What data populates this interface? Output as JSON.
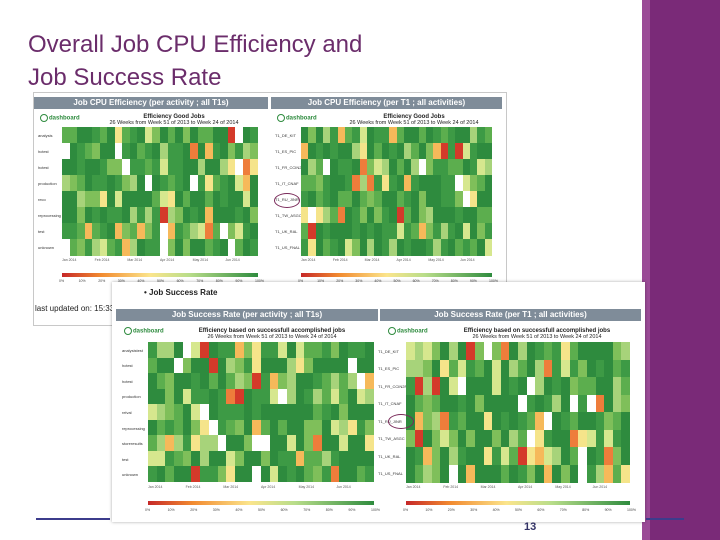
{
  "slide": {
    "title_line1": "Overall Job CPU Efficiency and",
    "title_line2": "Job Success Rate",
    "page_number": "13",
    "colors": {
      "title": "#6b2d6b",
      "sidebar": "#7a2a78",
      "accent_line": "#3c3c8c"
    }
  },
  "logo_text": "dashboard",
  "top_panel": {
    "left_tab": "Job CPU Efficiency (per activity ; all T1s)",
    "right_tab": "Job CPU Efficiency (per T1 ; all activities)",
    "chart_title": "Efficiency Good Jobs",
    "chart_subtitle": "26 Weeks from Week 51 of 2013 to Week 24 of 2014",
    "left_rows": [
      "analysis",
      "hctest",
      "hctest",
      "production",
      "reco",
      "reprocessing",
      "test",
      "unknown"
    ],
    "right_rows": [
      "T1_DE_KIT",
      "T1_ES_PIC",
      "T1_FR_CCIN2P3",
      "T1_IT_CNAF",
      "T1_RU_JINR",
      "T1_TW_ASGC",
      "T1_UK_RAL",
      "T1_US_FNAL"
    ],
    "left_ticks": [
      "Jan 2014",
      "Feb 2014",
      "Mar 2014",
      "Apr 2014",
      "May 2014",
      "Jun 2014"
    ],
    "right_ticks": [
      "Jan 2014",
      "Feb 2014",
      "Mar 2014",
      "Apr 2014",
      "May 2014",
      "Jun 2014"
    ],
    "scale": [
      "0%",
      "10%",
      "20%",
      "30%",
      "40%",
      "50%",
      "60%",
      "70%",
      "80%",
      "90%",
      "100%"
    ],
    "last_updated": "last updated on: 15:33"
  },
  "bottom_panel": {
    "bullet": "Job Success Rate",
    "left_tab": "Job Success Rate (per activity ; all T1s)",
    "right_tab": "Job Success Rate (per T1 ; all activities)",
    "chart_title": "Efficiency based on successfull accomplished jobs",
    "chart_subtitle": "26 Weeks from Week 51 of 2013 to Week 24 of 2014",
    "left_rows": [
      "analysistest",
      "hctest",
      "hctest",
      "production",
      "relval",
      "reprocessing",
      "storeresults",
      "test",
      "unknown"
    ],
    "right_rows": [
      "T1_DE_KIT",
      "T1_ES_PIC",
      "T1_FR_CCIN2P3",
      "T1_IT_CNAF",
      "T1_RU_JINR",
      "T1_TW_ASGC",
      "T1_UK_RAL",
      "T1_US_FNAL"
    ],
    "left_ticks": [
      "Jan 2014",
      "Feb 2014",
      "Mar 2014",
      "Apr 2014",
      "May 2014",
      "Jun 2014"
    ],
    "right_ticks": [
      "Jan 2014",
      "Feb 2014",
      "Mar 2014",
      "Apr 2014",
      "May 2014",
      "Jun 2014"
    ],
    "scale": [
      "0%",
      "10%",
      "20%",
      "30%",
      "40%",
      "50%",
      "60%",
      "70%",
      "80%",
      "90%",
      "100%"
    ]
  }
}
